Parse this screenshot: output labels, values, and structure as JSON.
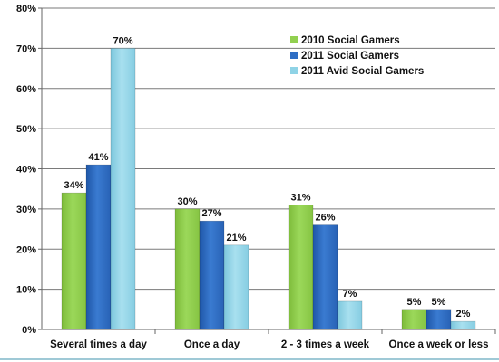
{
  "chart_data": {
    "type": "bar",
    "title": "",
    "xlabel": "",
    "ylabel": "",
    "ylim": [
      0,
      80
    ],
    "yticks": [
      0,
      10,
      20,
      30,
      40,
      50,
      60,
      70,
      80
    ],
    "ytick_labels": [
      "0%",
      "10%",
      "20%",
      "30%",
      "40%",
      "50%",
      "60%",
      "70%",
      "80%"
    ],
    "grid": true,
    "legend_position": "top-right",
    "categories": [
      "Several times a day",
      "Once a day",
      "2 - 3 times a week",
      "Once a week or less"
    ],
    "series": [
      {
        "name": "2010 Social Gamers",
        "color": "#92d050",
        "values": [
          34,
          30,
          31,
          5
        ],
        "labels": [
          "34%",
          "30%",
          "31%",
          "5%"
        ]
      },
      {
        "name": "2011 Social Gamers",
        "color": "#2e6ec4",
        "values": [
          41,
          27,
          26,
          5
        ],
        "labels": [
          "41%",
          "27%",
          "26%",
          "5%"
        ]
      },
      {
        "name": "2011 Avid Social Gamers",
        "color": "#8fd3e6",
        "values": [
          70,
          21,
          7,
          2
        ],
        "labels": [
          "70%",
          "21%",
          "7%",
          "2%"
        ]
      }
    ]
  }
}
